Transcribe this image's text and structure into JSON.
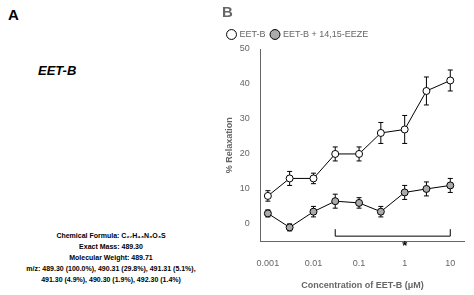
{
  "chart_data": {
    "type": "line",
    "title": "B",
    "xlabel": "Concentration of EET-B (μM)",
    "ylabel": "% Relaxation",
    "x": [
      0.001,
      0.003,
      0.01,
      0.03,
      0.1,
      0.3,
      1,
      3,
      10
    ],
    "series": [
      {
        "name": "EET-B",
        "color": "white",
        "marker": "circle",
        "line_style": "solid",
        "values": [
          8,
          13,
          13,
          20,
          20,
          26,
          27,
          38,
          41
        ],
        "errors": [
          1.5,
          2,
          1.5,
          2,
          2,
          3,
          4,
          4,
          3
        ]
      },
      {
        "name": "EET-B + 14,15-EEZE",
        "color": "#aaaaaa",
        "marker": "circle",
        "line_style": "solid",
        "values": [
          3,
          -1,
          3.5,
          6.5,
          6,
          3.5,
          9,
          10,
          11
        ],
        "errors": [
          1,
          1,
          1.5,
          2,
          1.5,
          1.5,
          2,
          2,
          2
        ]
      }
    ],
    "xlim": [
      0.0007,
      20
    ],
    "xticks": [
      0.001,
      0.01,
      0.1,
      1,
      10
    ],
    "ylim": [
      -5,
      50
    ],
    "yticks": [
      0,
      10,
      20,
      30,
      40,
      50
    ],
    "log": "x",
    "grid": false,
    "legend": "upper left",
    "annotations": [
      {
        "text": "*",
        "x": 1,
        "y": -4.5,
        "bracket": {
          "x": [
            0.03,
            10
          ],
          "y": [
            -3.5,
            -1.5
          ]
        }
      }
    ],
    "panel_texts": [
      "A",
      "EET-B",
      "Chemical Formula: C₂₇H₄₃N₃O₃S",
      "Exact Mass: 489.30",
      "Molecular Weight: 489.71",
      "m/z: 489.30 (100.0%), 490.31 (29.8%), 491.31 (5.1%),",
      "491.30 (4.9%), 490.30 (1.9%), 492.30 (1.4%)"
    ]
  }
}
